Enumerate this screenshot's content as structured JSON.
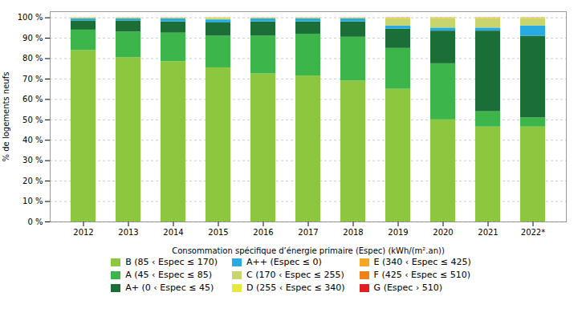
{
  "chart_data": {
    "type": "bar",
    "stacked": true,
    "categories": [
      "2012",
      "2013",
      "2014",
      "2015",
      "2016",
      "2017",
      "2018",
      "2019",
      "2020",
      "2021",
      "2022*"
    ],
    "series": [
      {
        "name": "B (85 ‹ Espec ≤ 170)",
        "color": "#8DC63F",
        "values": [
          84.0,
          80.5,
          78.5,
          75.5,
          72.5,
          71.5,
          69.0,
          65.0,
          50.0,
          46.5,
          46.5
        ]
      },
      {
        "name": "A (45 ‹ Espec ≤ 85)",
        "color": "#3CB54A",
        "values": [
          10.0,
          12.5,
          14.0,
          15.5,
          18.5,
          20.5,
          21.5,
          20.0,
          27.5,
          7.5,
          4.5
        ]
      },
      {
        "name": "A+ (0 ‹ Espec ≤ 45)",
        "color": "#1B6E35",
        "values": [
          4.5,
          5.5,
          5.5,
          6.5,
          7.0,
          6.0,
          7.5,
          9.5,
          16.0,
          39.5,
          40.0
        ]
      },
      {
        "name": "A++ (Espec ≤ 0)",
        "color": "#29ABE2",
        "values": [
          1.0,
          1.0,
          1.5,
          1.5,
          1.5,
          1.5,
          1.5,
          1.5,
          1.5,
          1.5,
          5.0
        ]
      },
      {
        "name": "C (170 ‹ Espec ≤ 255)",
        "color": "#C8D46E",
        "values": [
          0.3,
          0.3,
          0.3,
          0.7,
          0.3,
          0.3,
          0.3,
          3.5,
          4.5,
          4.5,
          3.5
        ]
      },
      {
        "name": "D (255 ‹ Espec ≤ 340)",
        "color": "#E8E840",
        "values": [
          0.1,
          0.1,
          0.1,
          0.2,
          0.1,
          0.1,
          0.1,
          0.3,
          0.3,
          0.3,
          0.3
        ]
      },
      {
        "name": "E (340 ‹ Espec ≤ 425)",
        "color": "#F5A623",
        "values": [
          0.05,
          0.05,
          0.05,
          0.05,
          0.05,
          0.05,
          0.05,
          0.1,
          0.1,
          0.1,
          0.1
        ]
      },
      {
        "name": "F (425 ‹ Espec ≤ 510)",
        "color": "#F0801A",
        "values": [
          0.03,
          0.03,
          0.03,
          0.03,
          0.03,
          0.03,
          0.03,
          0.05,
          0.05,
          0.05,
          0.05
        ]
      },
      {
        "name": "G (Espec › 510)",
        "color": "#E02020",
        "values": [
          0.02,
          0.02,
          0.02,
          0.02,
          0.02,
          0.02,
          0.02,
          0.05,
          0.05,
          0.05,
          0.05
        ]
      }
    ],
    "xlabel": "Consommation spécifique d’énergie primaire (Espec) (kWh/(m².an))",
    "ylabel": "% de logements neufs",
    "ylim": [
      0,
      103
    ],
    "yticks": [
      {
        "value": 0,
        "label": "0 %"
      },
      {
        "value": 10,
        "label": "10 %"
      },
      {
        "value": 20,
        "label": "20 %"
      },
      {
        "value": 30,
        "label": "30 %"
      },
      {
        "value": 40,
        "label": "40 %"
      },
      {
        "value": 50,
        "label": "50 %"
      },
      {
        "value": 60,
        "label": "60 %"
      },
      {
        "value": 70,
        "label": "70 %"
      },
      {
        "value": 80,
        "label": "80 %"
      },
      {
        "value": 90,
        "label": "90 %"
      },
      {
        "value": 100,
        "label": "100 %"
      }
    ],
    "grid": true,
    "legend": "bottom"
  }
}
